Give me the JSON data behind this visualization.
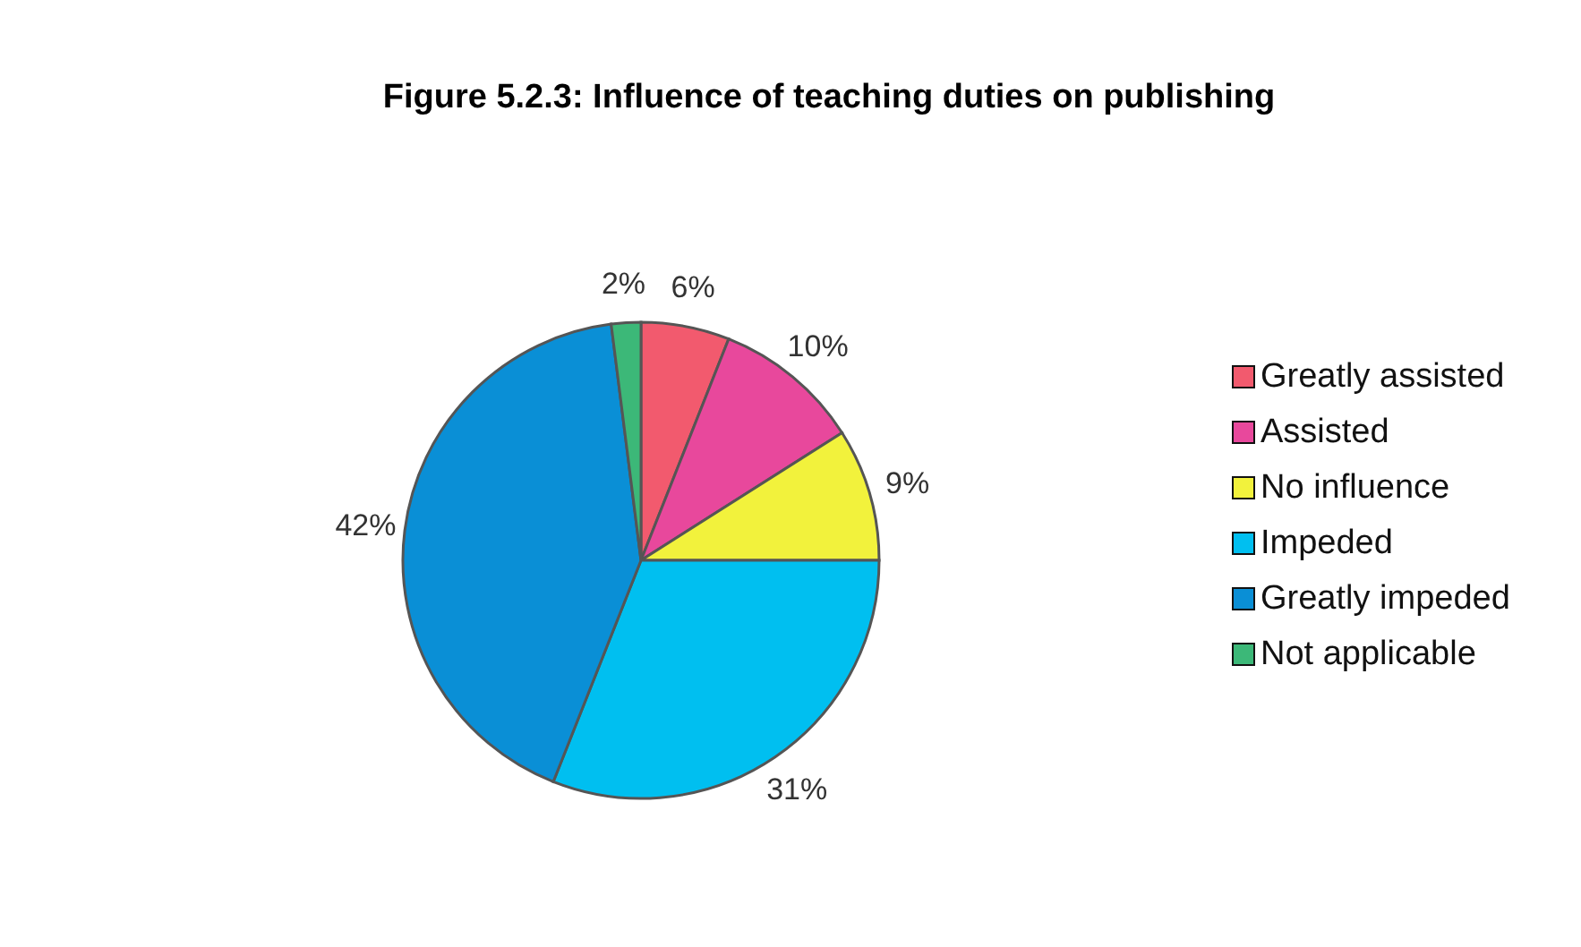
{
  "chart_data": {
    "type": "pie",
    "title": "Figure 5.2.3: Influence of teaching duties on publishing",
    "categories": [
      "Greatly assisted",
      "Assisted",
      "No influence",
      "Impeded",
      "Greatly impeded",
      "Not applicable"
    ],
    "values": [
      6,
      10,
      9,
      31,
      42,
      2
    ],
    "value_labels": [
      "6%",
      "10%",
      "9%",
      "31%",
      "42%",
      "2%"
    ],
    "colors": [
      "#f25a6e",
      "#e8489c",
      "#f2f23c",
      "#00bff0",
      "#0a8fd6",
      "#3cb878"
    ],
    "legend": "right"
  }
}
